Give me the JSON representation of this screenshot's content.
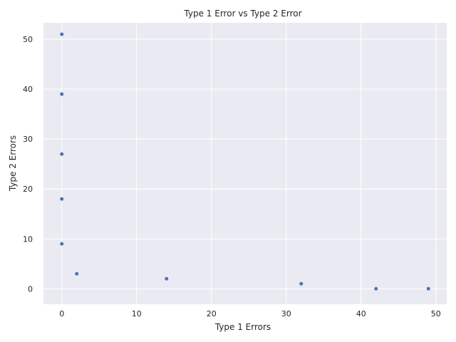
{
  "chart_data": {
    "type": "scatter",
    "title": "Type 1 Error vs Type 2 Error",
    "xlabel": "Type 1 Errors",
    "ylabel": "Type 2 Errors",
    "xlim": [
      -2.45,
      51.45
    ],
    "ylim": [
      -3.1,
      53.3
    ],
    "xticks": [
      0,
      10,
      20,
      30,
      40,
      50
    ],
    "yticks": [
      0,
      10,
      20,
      30,
      40,
      50
    ],
    "grid": true,
    "points": [
      {
        "x": 0,
        "y": 51
      },
      {
        "x": 0,
        "y": 39
      },
      {
        "x": 0,
        "y": 27
      },
      {
        "x": 0,
        "y": 18
      },
      {
        "x": 0,
        "y": 9
      },
      {
        "x": 2,
        "y": 3
      },
      {
        "x": 14,
        "y": 2
      },
      {
        "x": 32,
        "y": 1
      },
      {
        "x": 42,
        "y": 0
      },
      {
        "x": 49,
        "y": 0
      }
    ],
    "colors": {
      "background": "#eaeaf2",
      "grid": "#ffffff",
      "marker": "#4c72b0",
      "text": "#262626"
    }
  }
}
